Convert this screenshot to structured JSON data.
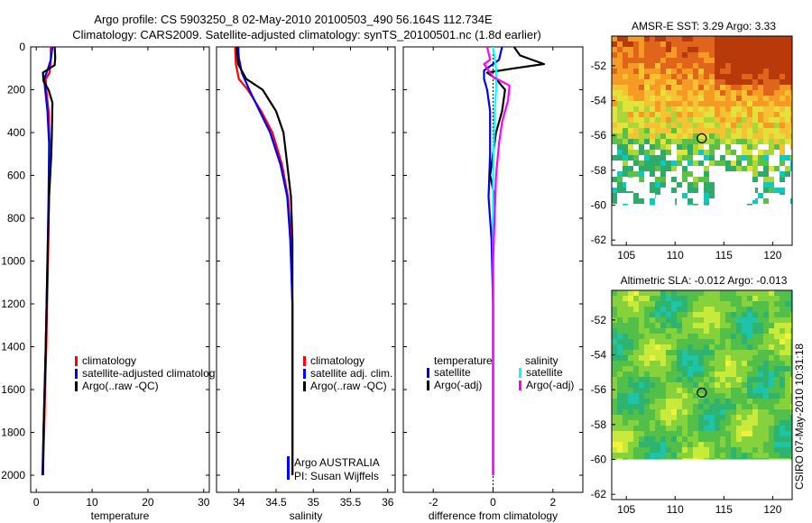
{
  "header": {
    "line1": "Argo profile: CS 5903250_8 02-May-2010 20100503_490 56.164S 112.734E",
    "line2": "Climatology: CARS2009. Satellite-adjusted climatology: synTS_20100501.nc (1.8d earlier)"
  },
  "side_label": "CSIRO 07-May-2010 10:31:18",
  "colors": {
    "climatology": "#ff0000",
    "satellite": "#0000ff",
    "argo": "#000000",
    "sal_satellite": "#00ffff",
    "sal_argo": "#ff00ff"
  },
  "chart_data": [
    {
      "id": "temperature",
      "type": "line",
      "xlabel": "temperature",
      "ylabel": "",
      "xlim": [
        -1,
        31
      ],
      "ylim": [
        2080,
        0
      ],
      "xticks": [
        "0",
        "10",
        "20",
        "30"
      ],
      "yticks": [
        "0",
        "200",
        "400",
        "600",
        "800",
        "1000",
        "1200",
        "1400",
        "1600",
        "1800",
        "2000"
      ],
      "legend": [
        "climatology",
        "satellite-adjusted climatology",
        "Argo(..raw -QC)"
      ],
      "series": [
        {
          "name": "climatology",
          "color": "#ff0000",
          "points": [
            [
              2.6,
              0
            ],
            [
              2.6,
              60
            ],
            [
              2.4,
              120
            ],
            [
              1.7,
              150
            ],
            [
              1.8,
              200
            ],
            [
              2.2,
              300
            ],
            [
              2.4,
              450
            ],
            [
              2.3,
              700
            ],
            [
              2.1,
              1000
            ],
            [
              1.8,
              1400
            ],
            [
              1.4,
              1800
            ],
            [
              1.2,
              2000
            ]
          ]
        },
        {
          "name": "satellite-adjusted climatology",
          "color": "#0000ff",
          "points": [
            [
              2.9,
              0
            ],
            [
              2.6,
              60
            ],
            [
              2.0,
              110
            ],
            [
              1.4,
              150
            ],
            [
              1.6,
              200
            ],
            [
              2.0,
              300
            ],
            [
              2.3,
              450
            ],
            [
              2.2,
              700
            ],
            [
              2.0,
              1000
            ],
            [
              1.7,
              1400
            ],
            [
              1.3,
              1800
            ],
            [
              1.1,
              2000
            ]
          ]
        },
        {
          "name": "Argo(..raw -QC)",
          "color": "#000000",
          "points": [
            [
              3.3,
              0
            ],
            [
              3.4,
              50
            ],
            [
              3.3,
              85
            ],
            [
              1.2,
              120
            ],
            [
              1.3,
              160
            ],
            [
              2.2,
              200
            ],
            [
              2.9,
              260
            ],
            [
              2.8,
              400
            ],
            [
              2.7,
              500
            ],
            [
              2.3,
              700
            ],
            [
              2.0,
              1000
            ],
            [
              1.7,
              1400
            ],
            [
              1.3,
              1800
            ],
            [
              1.2,
              2000
            ]
          ]
        }
      ]
    },
    {
      "id": "salinity",
      "type": "line",
      "xlabel": "salinity",
      "xlim": [
        33.7,
        36.1
      ],
      "ylim": [
        2080,
        0
      ],
      "xticks": [
        "34",
        "34.5",
        "35",
        "35.5",
        "36"
      ],
      "legend": [
        "climatology",
        "satellite adj. clim.",
        "Argo(..raw -QC)"
      ],
      "annotation": [
        "Argo AUSTRALIA",
        "PI: Susan Wijffels"
      ],
      "series": [
        {
          "name": "climatology",
          "color": "#ff0000",
          "points": [
            [
              33.95,
              0
            ],
            [
              33.96,
              80
            ],
            [
              34.0,
              150
            ],
            [
              34.12,
              200
            ],
            [
              34.3,
              300
            ],
            [
              34.45,
              400
            ],
            [
              34.58,
              550
            ],
            [
              34.66,
              700
            ],
            [
              34.7,
              900
            ],
            [
              34.72,
              1200
            ],
            [
              34.72,
              2000
            ]
          ]
        },
        {
          "name": "satellite adj. clim.",
          "color": "#0000ff",
          "points": [
            [
              33.99,
              0
            ],
            [
              34.0,
              50
            ],
            [
              34.04,
              120
            ],
            [
              34.14,
              200
            ],
            [
              34.28,
              300
            ],
            [
              34.42,
              400
            ],
            [
              34.56,
              550
            ],
            [
              34.65,
              700
            ],
            [
              34.69,
              900
            ],
            [
              34.72,
              1200
            ],
            [
              34.72,
              2000
            ]
          ]
        },
        {
          "name": "Argo(..raw -QC)",
          "color": "#000000",
          "points": [
            [
              33.97,
              0
            ],
            [
              33.99,
              80
            ],
            [
              34.1,
              150
            ],
            [
              34.32,
              200
            ],
            [
              34.5,
              300
            ],
            [
              34.6,
              400
            ],
            [
              34.65,
              550
            ],
            [
              34.7,
              700
            ],
            [
              34.72,
              900
            ],
            [
              34.72,
              1200
            ],
            [
              34.72,
              2000
            ]
          ]
        }
      ]
    },
    {
      "id": "difference",
      "type": "line",
      "xlabel": "difference from climatology",
      "xlim": [
        -3,
        3
      ],
      "ylim": [
        2080,
        0
      ],
      "xticks": [
        "-2",
        "0",
        "2"
      ],
      "legend_left_title": "temperature",
      "legend_right_title": "salinity",
      "legend_left": [
        "satellite",
        "Argo(-adj)"
      ],
      "legend_right": [
        "satellite",
        "Argo(-adj)"
      ],
      "series": [
        {
          "name": "temperature satellite",
          "color": "#0000ff",
          "points": [
            [
              0.3,
              0
            ],
            [
              0.2,
              60
            ],
            [
              -0.3,
              110
            ],
            [
              -0.3,
              150
            ],
            [
              -0.2,
              200
            ],
            [
              -0.1,
              300
            ],
            [
              -0.1,
              500
            ],
            [
              -0.15,
              700
            ],
            [
              -0.05,
              900
            ],
            [
              0,
              1200
            ],
            [
              0,
              2000
            ]
          ]
        },
        {
          "name": "temperature Argo(-adj)",
          "color": "#000000",
          "points": [
            [
              0.7,
              0
            ],
            [
              0.9,
              40
            ],
            [
              1.7,
              80
            ],
            [
              0.7,
              100
            ],
            [
              -0.2,
              120
            ],
            [
              0.1,
              150
            ],
            [
              0.4,
              200
            ],
            [
              0.3,
              300
            ],
            [
              0.1,
              400
            ],
            [
              -0.1,
              600
            ],
            [
              0.05,
              700
            ],
            [
              0,
              800
            ],
            [
              0,
              2000
            ]
          ]
        },
        {
          "name": "salinity satellite",
          "color": "#00ffff",
          "points": [
            [
              0.0,
              0
            ],
            [
              0.1,
              100
            ],
            [
              0.1,
              200
            ],
            [
              0.05,
              300
            ],
            [
              0.0,
              600
            ],
            [
              0,
              2000
            ]
          ]
        },
        {
          "name": "salinity Argo(-adj)",
          "color": "#ff00ff",
          "points": [
            [
              -0.2,
              0
            ],
            [
              -0.1,
              60
            ],
            [
              -0.3,
              80
            ],
            [
              0.0,
              140
            ],
            [
              0.55,
              180
            ],
            [
              0.5,
              250
            ],
            [
              0.3,
              350
            ],
            [
              0.2,
              450
            ],
            [
              0.1,
              600
            ],
            [
              0.05,
              800
            ],
            [
              0,
              1000
            ],
            [
              0,
              2000
            ]
          ]
        }
      ]
    },
    {
      "id": "sst_map",
      "type": "heatmap",
      "title": "AMSR-E SST: 3.29 Argo: 3.33",
      "xlim": [
        103.5,
        122
      ],
      "ylim": [
        -62.3,
        -50.3
      ],
      "xticks": [
        "105",
        "110",
        "115",
        "120"
      ],
      "yticks": [
        "-52",
        "-54",
        "-56",
        "-58",
        "-60",
        "-62"
      ],
      "marker": [
        112.734,
        -56.164
      ]
    },
    {
      "id": "sla_map",
      "type": "heatmap",
      "title": "Altimetric SLA: -0.012 Argo: -0.013",
      "xlim": [
        103.5,
        122
      ],
      "ylim": [
        -62.3,
        -50.3
      ],
      "xticks": [
        "105",
        "110",
        "115",
        "120"
      ],
      "yticks": [
        "-52",
        "-54",
        "-56",
        "-58",
        "-60",
        "-62"
      ],
      "marker": [
        112.734,
        -56.164
      ]
    }
  ]
}
